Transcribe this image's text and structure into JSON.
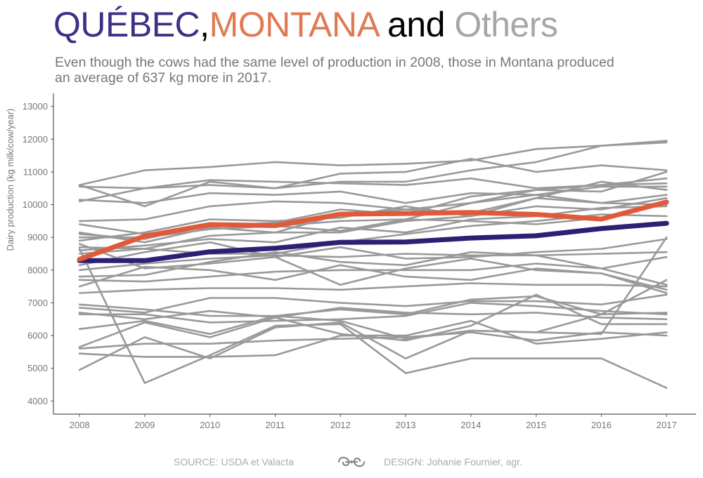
{
  "title": {
    "part1": "QUÉBEC",
    "sep1": ",",
    "part2": "MONTANA",
    "sep2": " and ",
    "part3": "Others",
    "colors": {
      "part1": "#3c3284",
      "sep1": "#000000",
      "part2": "#e07a52",
      "sep2": "#000000",
      "part3": "#a6a6a6"
    }
  },
  "subtitle": {
    "line1": "Even though the cows had the same level of production in 2008, those in Montana produced",
    "line2": "an average of 637 kg more in 2017."
  },
  "footer": {
    "source": "SOURCE: USDA et Valacta",
    "design": "DESIGN: Johanie Fournier, agr.",
    "logo_icon": "ornament-icon"
  },
  "chart_data": {
    "type": "line",
    "x": [
      2008,
      2009,
      2010,
      2011,
      2012,
      2013,
      2014,
      2015,
      2016,
      2017
    ],
    "xlim": [
      2007.6,
      2017.45
    ],
    "ylim": [
      3600,
      13400
    ],
    "yticks": [
      4000,
      5000,
      6000,
      7000,
      8000,
      9000,
      10000,
      11000,
      12000,
      13000
    ],
    "ylabel": "Dairy production (kg milk/cow/year)",
    "grid": false,
    "colors": {
      "highlight_1": "#e05a3a",
      "highlight_2": "#2e1f74",
      "others": "#999999"
    },
    "series": [
      {
        "values": [
          8330,
          9040,
          9390,
          9360,
          9710,
          9730,
          9760,
          9700,
          9560,
          10080
        ],
        "color": "#e05a3a",
        "highlight": true
      },
      {
        "values": [
          8290,
          8290,
          8560,
          8670,
          8850,
          8860,
          8980,
          9050,
          9270,
          9430
        ],
        "color": "#2e1f74",
        "highlight": true
      },
      {
        "values": [
          10600,
          11050,
          11150,
          11300,
          11200,
          11250,
          11350,
          11700,
          11800,
          11950
        ],
        "color": "#999999"
      },
      {
        "values": [
          10550,
          10500,
          10750,
          10700,
          10650,
          10600,
          10800,
          10500,
          10600,
          10650
        ]
      },
      {
        "values": [
          10600,
          9950,
          10700,
          10500,
          10950,
          11000,
          11400,
          11000,
          11200,
          11050
        ]
      },
      {
        "values": [
          10150,
          10050,
          10350,
          10300,
          10400,
          10050,
          10350,
          10300,
          10550,
          10550
        ]
      },
      {
        "values": [
          10100,
          10500,
          10600,
          10500,
          10700,
          10700,
          11050,
          11300,
          11800,
          11900
        ]
      },
      {
        "values": [
          9500,
          9550,
          9950,
          10100,
          10050,
          9850,
          10050,
          10300,
          10050,
          10300
        ]
      },
      {
        "values": [
          9400,
          9100,
          9350,
          9450,
          9850,
          9700,
          10250,
          10450,
          10400,
          11000
        ]
      },
      {
        "values": [
          9150,
          8850,
          9300,
          9150,
          9700,
          9850,
          9750,
          10200,
          10050,
          10000
        ]
      },
      {
        "values": [
          9100,
          8950,
          9400,
          9350,
          9200,
          9550,
          9500,
          9400,
          9600,
          10100
        ]
      },
      {
        "values": [
          9000,
          9000,
          9250,
          9350,
          9500,
          9550,
          10050,
          10450,
          10600,
          10800
        ]
      },
      {
        "values": [
          8900,
          9150,
          9550,
          9500,
          9600,
          9950,
          9650,
          10200,
          10700,
          10450
        ]
      },
      {
        "values": [
          8700,
          8650,
          9050,
          9150,
          9150,
          9500,
          9650,
          9950,
          9850,
          10200
        ]
      },
      {
        "values": [
          8600,
          8750,
          8950,
          8850,
          9300,
          9150,
          9550,
          9650,
          9900,
          9950
        ]
      },
      {
        "values": [
          8500,
          8650,
          8500,
          8500,
          8850,
          9100,
          9350,
          9500,
          9700,
          9650
        ]
      },
      {
        "values": [
          8150,
          8550,
          8850,
          8400,
          8700,
          8350,
          8400,
          8550,
          8650,
          8950
        ]
      },
      {
        "values": [
          8000,
          8200,
          8350,
          8450,
          8400,
          8500,
          8450,
          8450,
          8500,
          8550
        ]
      },
      {
        "values": [
          7800,
          7850,
          8250,
          8550,
          8250,
          8150,
          8550,
          8450,
          8050,
          8400
        ]
      },
      {
        "values": [
          7700,
          7650,
          7800,
          7950,
          8000,
          8000,
          8000,
          8200,
          8050,
          7550
        ]
      },
      {
        "values": [
          7500,
          8100,
          8000,
          7700,
          8150,
          7800,
          7700,
          8050,
          7900,
          7400
        ]
      },
      {
        "values": [
          7300,
          7400,
          7450,
          7450,
          7400,
          7500,
          7600,
          7550,
          7550,
          7500
        ]
      },
      {
        "values": [
          8800,
          8050,
          8200,
          8400,
          7550,
          8050,
          8350,
          8000,
          7900,
          7300
        ]
      },
      {
        "values": [
          6950,
          6800,
          6600,
          6600,
          6800,
          6650,
          7100,
          7200,
          6650,
          7700
        ]
      },
      {
        "values": [
          6850,
          6700,
          7150,
          7150,
          7000,
          6900,
          7050,
          7050,
          6950,
          7250
        ]
      },
      {
        "values": [
          6650,
          6650,
          6400,
          6450,
          6500,
          6600,
          7000,
          6900,
          6750,
          6650
        ]
      },
      {
        "values": [
          6700,
          6500,
          6750,
          6550,
          6850,
          6700,
          6650,
          6700,
          6550,
          6500
        ]
      },
      {
        "values": [
          6200,
          6450,
          6050,
          6600,
          6450,
          5900,
          6150,
          6100,
          6650,
          6700
        ]
      },
      {
        "values": [
          5650,
          6400,
          5950,
          6550,
          6050,
          5850,
          6300,
          7250,
          6350,
          6350
        ]
      },
      {
        "values": [
          5600,
          5750,
          5750,
          5850,
          5900,
          5950,
          6100,
          5850,
          6100,
          6000
        ]
      },
      {
        "values": [
          5450,
          5350,
          5350,
          5400,
          6000,
          6000,
          6450,
          5750,
          5900,
          6100
        ]
      },
      {
        "values": [
          4950,
          5950,
          5300,
          6250,
          6400,
          5300,
          6150,
          6100,
          6050,
          9000
        ]
      },
      {
        "values": [
          8650,
          4550,
          5400,
          6300,
          6350,
          4850,
          5300,
          5300,
          5300,
          4400
        ]
      }
    ]
  }
}
